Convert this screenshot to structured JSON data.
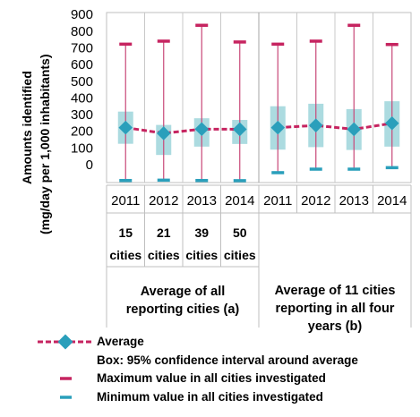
{
  "chart_data": {
    "type": "box",
    "ylabel_line1": "Amounts identified",
    "ylabel_line2": "(mg/day per 1,000 inhabitants)",
    "ylim": [
      0,
      900
    ],
    "yticks": [
      "0",
      "100",
      "200",
      "300",
      "400",
      "500",
      "600",
      "700",
      "800",
      "900"
    ],
    "groups": [
      {
        "label": "Average of all reporting cities (a)",
        "label_lines": [
          "Average of all",
          "reporting cities (a)"
        ],
        "categories": [
          "2011",
          "2012",
          "2013",
          "2014"
        ],
        "counts": [
          "15",
          "21",
          "39",
          "50"
        ],
        "counts_unit": "cities",
        "average": [
          222,
          188,
          213,
          212
        ],
        "ci_low": [
          125,
          58,
          108,
          124
        ],
        "ci_high": [
          318,
          238,
          278,
          268
        ],
        "max": [
          722,
          740,
          835,
          735
        ],
        "min": [
          -95,
          -93,
          -95,
          -96
        ]
      },
      {
        "label": "Average of 11 cities reporting in all four years (b)",
        "label_lines": [
          "Average of 11 cities",
          "reporting in all four",
          "years (b)"
        ],
        "categories": [
          "2011",
          "2012",
          "2013",
          "2014"
        ],
        "average": [
          222,
          235,
          212,
          248
        ],
        "ci_low": [
          90,
          105,
          88,
          108
        ],
        "ci_high": [
          350,
          365,
          333,
          380
        ],
        "max": [
          722,
          740,
          835,
          720
        ],
        "min": [
          -48,
          -27,
          -27,
          -18
        ]
      }
    ],
    "colors": {
      "box": "#acdbe0",
      "average": "#c62460",
      "diamond": "#2a9fbb",
      "max": "#c62460",
      "min": "#2a9fbb",
      "whisker": "#c84878"
    },
    "legend": {
      "average": "Average",
      "box": "Box: 95% confidence interval around average",
      "max": "Maximum value in all cities investigated",
      "min": "Minimum value in all cities investigated"
    }
  }
}
